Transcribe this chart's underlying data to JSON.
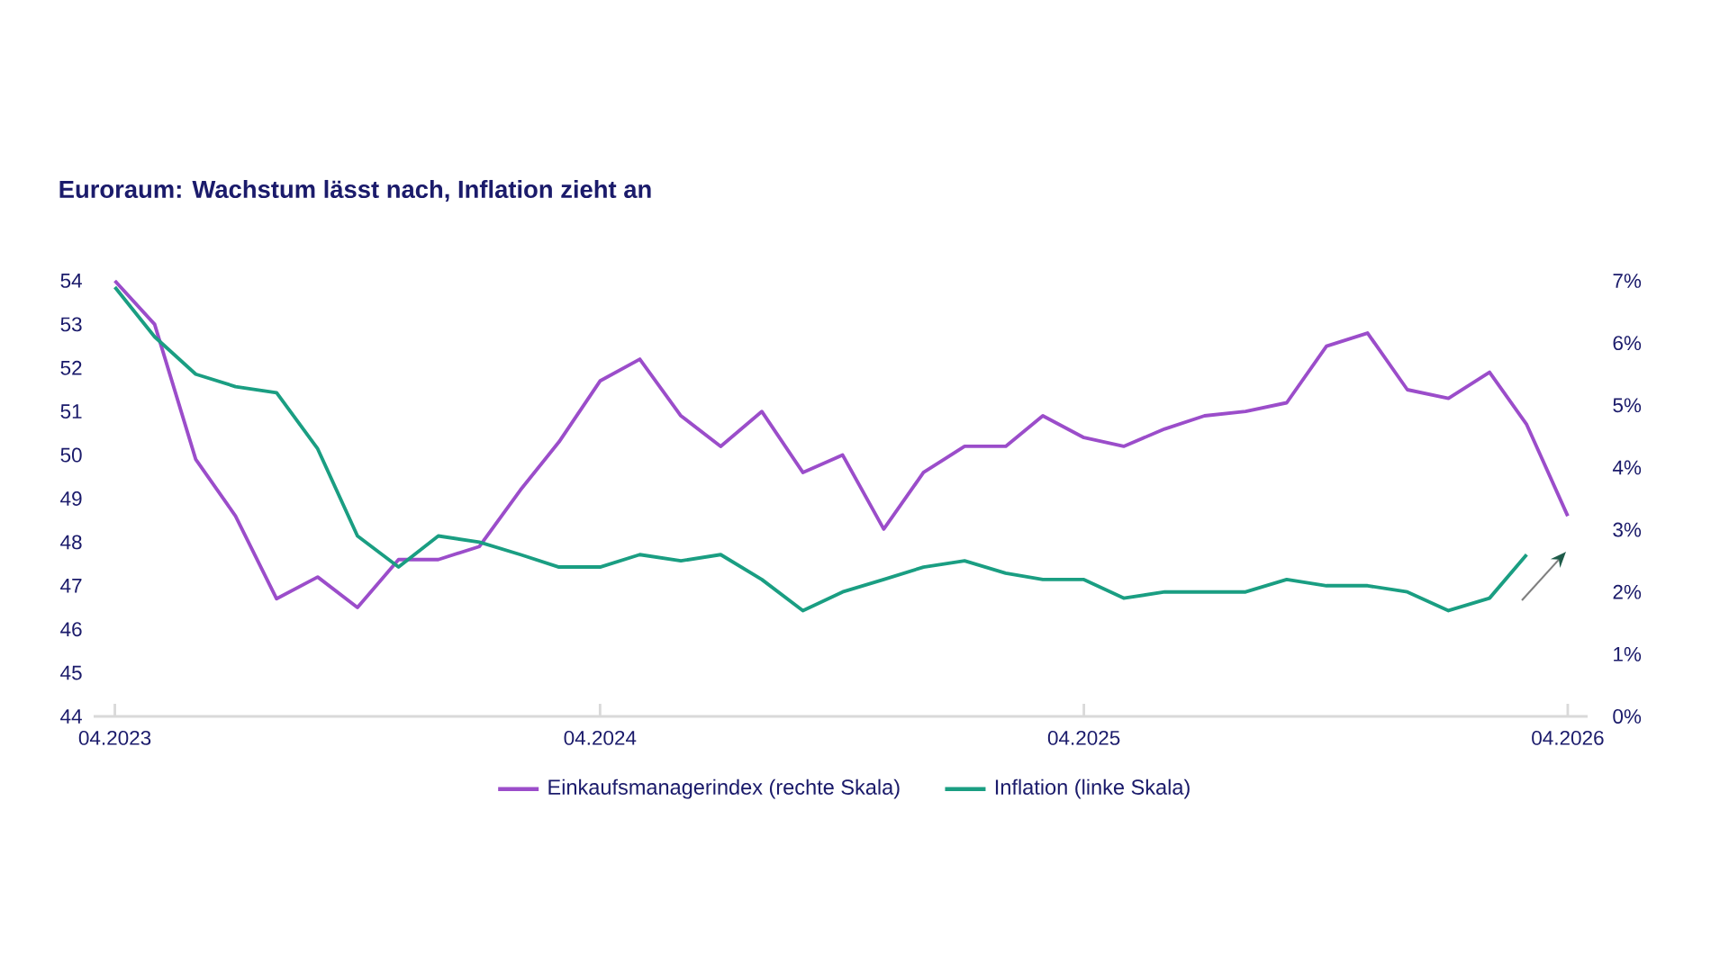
{
  "chart_data": {
    "type": "line",
    "title": "Euroraum: Wachstum lässt nach, Inflation zieht an",
    "xlim": [
      "2023-03-16",
      "2026-04-16"
    ],
    "xticks": [
      {
        "value": "2023-04",
        "label": "04.2023"
      },
      {
        "value": "2024-04",
        "label": "04.2024"
      },
      {
        "value": "2025-04",
        "label": "04.2025"
      },
      {
        "value": "2026-04",
        "label": "04.2026"
      }
    ],
    "ylim": [
      44,
      54
    ],
    "yticks": [
      44,
      45,
      46,
      47,
      48,
      49,
      50,
      51,
      52,
      53,
      54
    ],
    "y2lim": [
      0,
      7
    ],
    "y2ticks": [
      {
        "value": 0,
        "label": "0%"
      },
      {
        "value": 1,
        "label": "1%"
      },
      {
        "value": 2,
        "label": "2%"
      },
      {
        "value": 3,
        "label": "3%"
      },
      {
        "value": 4,
        "label": "4%"
      },
      {
        "value": 5,
        "label": "5%"
      },
      {
        "value": 6,
        "label": "6%"
      },
      {
        "value": 7,
        "label": "7%"
      }
    ],
    "legend": "bottom",
    "marker": "none",
    "line_style": "solid",
    "series": [
      {
        "name": "Einkaufsmanagerindex (rechte Skala)",
        "color": "#9b4dca",
        "x": [
          "2023-04",
          "2023-05",
          "2023-06",
          "2023-07",
          "2023-08",
          "2023-09",
          "2023-10",
          "2023-11",
          "2023-12",
          "2024-01",
          "2024-02",
          "2024-03",
          "2024-04",
          "2024-05",
          "2024-06",
          "2024-07",
          "2024-08",
          "2024-09",
          "2024-10",
          "2024-11",
          "2024-12",
          "2025-01",
          "2025-02",
          "2025-03",
          "2025-04",
          "2025-05",
          "2025-06",
          "2025-07",
          "2025-08",
          "2025-09",
          "2025-10",
          "2025-11",
          "2025-12",
          "2026-01",
          "2026-02",
          "2026-03",
          "2026-04"
        ],
        "values": [
          54.0,
          53.0,
          49.9,
          48.6,
          46.7,
          47.2,
          46.5,
          47.6,
          47.6,
          47.9,
          49.2,
          50.3,
          51.7,
          52.2,
          50.9,
          50.2,
          51.0,
          49.6,
          50.0,
          48.3,
          49.6,
          50.2,
          50.2,
          50.9,
          50.4,
          50.2,
          50.6,
          50.9,
          51.0,
          51.2,
          52.5,
          52.8,
          51.5,
          51.3,
          51.9,
          50.7,
          48.6
        ]
      },
      {
        "name": "Inflation (linke Skala)",
        "color": "#1a9e82",
        "axis": "y2",
        "x": [
          "2023-04",
          "2023-05",
          "2023-06",
          "2023-07",
          "2023-08",
          "2023-09",
          "2023-10",
          "2023-11",
          "2023-12",
          "2024-01",
          "2024-02",
          "2024-03",
          "2024-04",
          "2024-05",
          "2024-06",
          "2024-07",
          "2024-08",
          "2024-09",
          "2024-10",
          "2024-11",
          "2024-12",
          "2025-01",
          "2025-02",
          "2025-03",
          "2025-04",
          "2025-05",
          "2025-06",
          "2025-07",
          "2025-08",
          "2025-09",
          "2025-10",
          "2025-11",
          "2025-12",
          "2026-01",
          "2026-02",
          "2026-03"
        ],
        "values": [
          6.9,
          6.1,
          5.5,
          5.3,
          5.2,
          4.3,
          2.9,
          2.4,
          2.9,
          2.8,
          2.6,
          2.4,
          2.4,
          2.6,
          2.5,
          2.6,
          2.2,
          1.7,
          2.0,
          2.2,
          2.4,
          2.5,
          2.3,
          2.2,
          2.2,
          1.9,
          2.0,
          2.0,
          2.0,
          2.2,
          2.1,
          2.1,
          2.0,
          1.7,
          1.9,
          2.6
        ]
      }
    ]
  }
}
